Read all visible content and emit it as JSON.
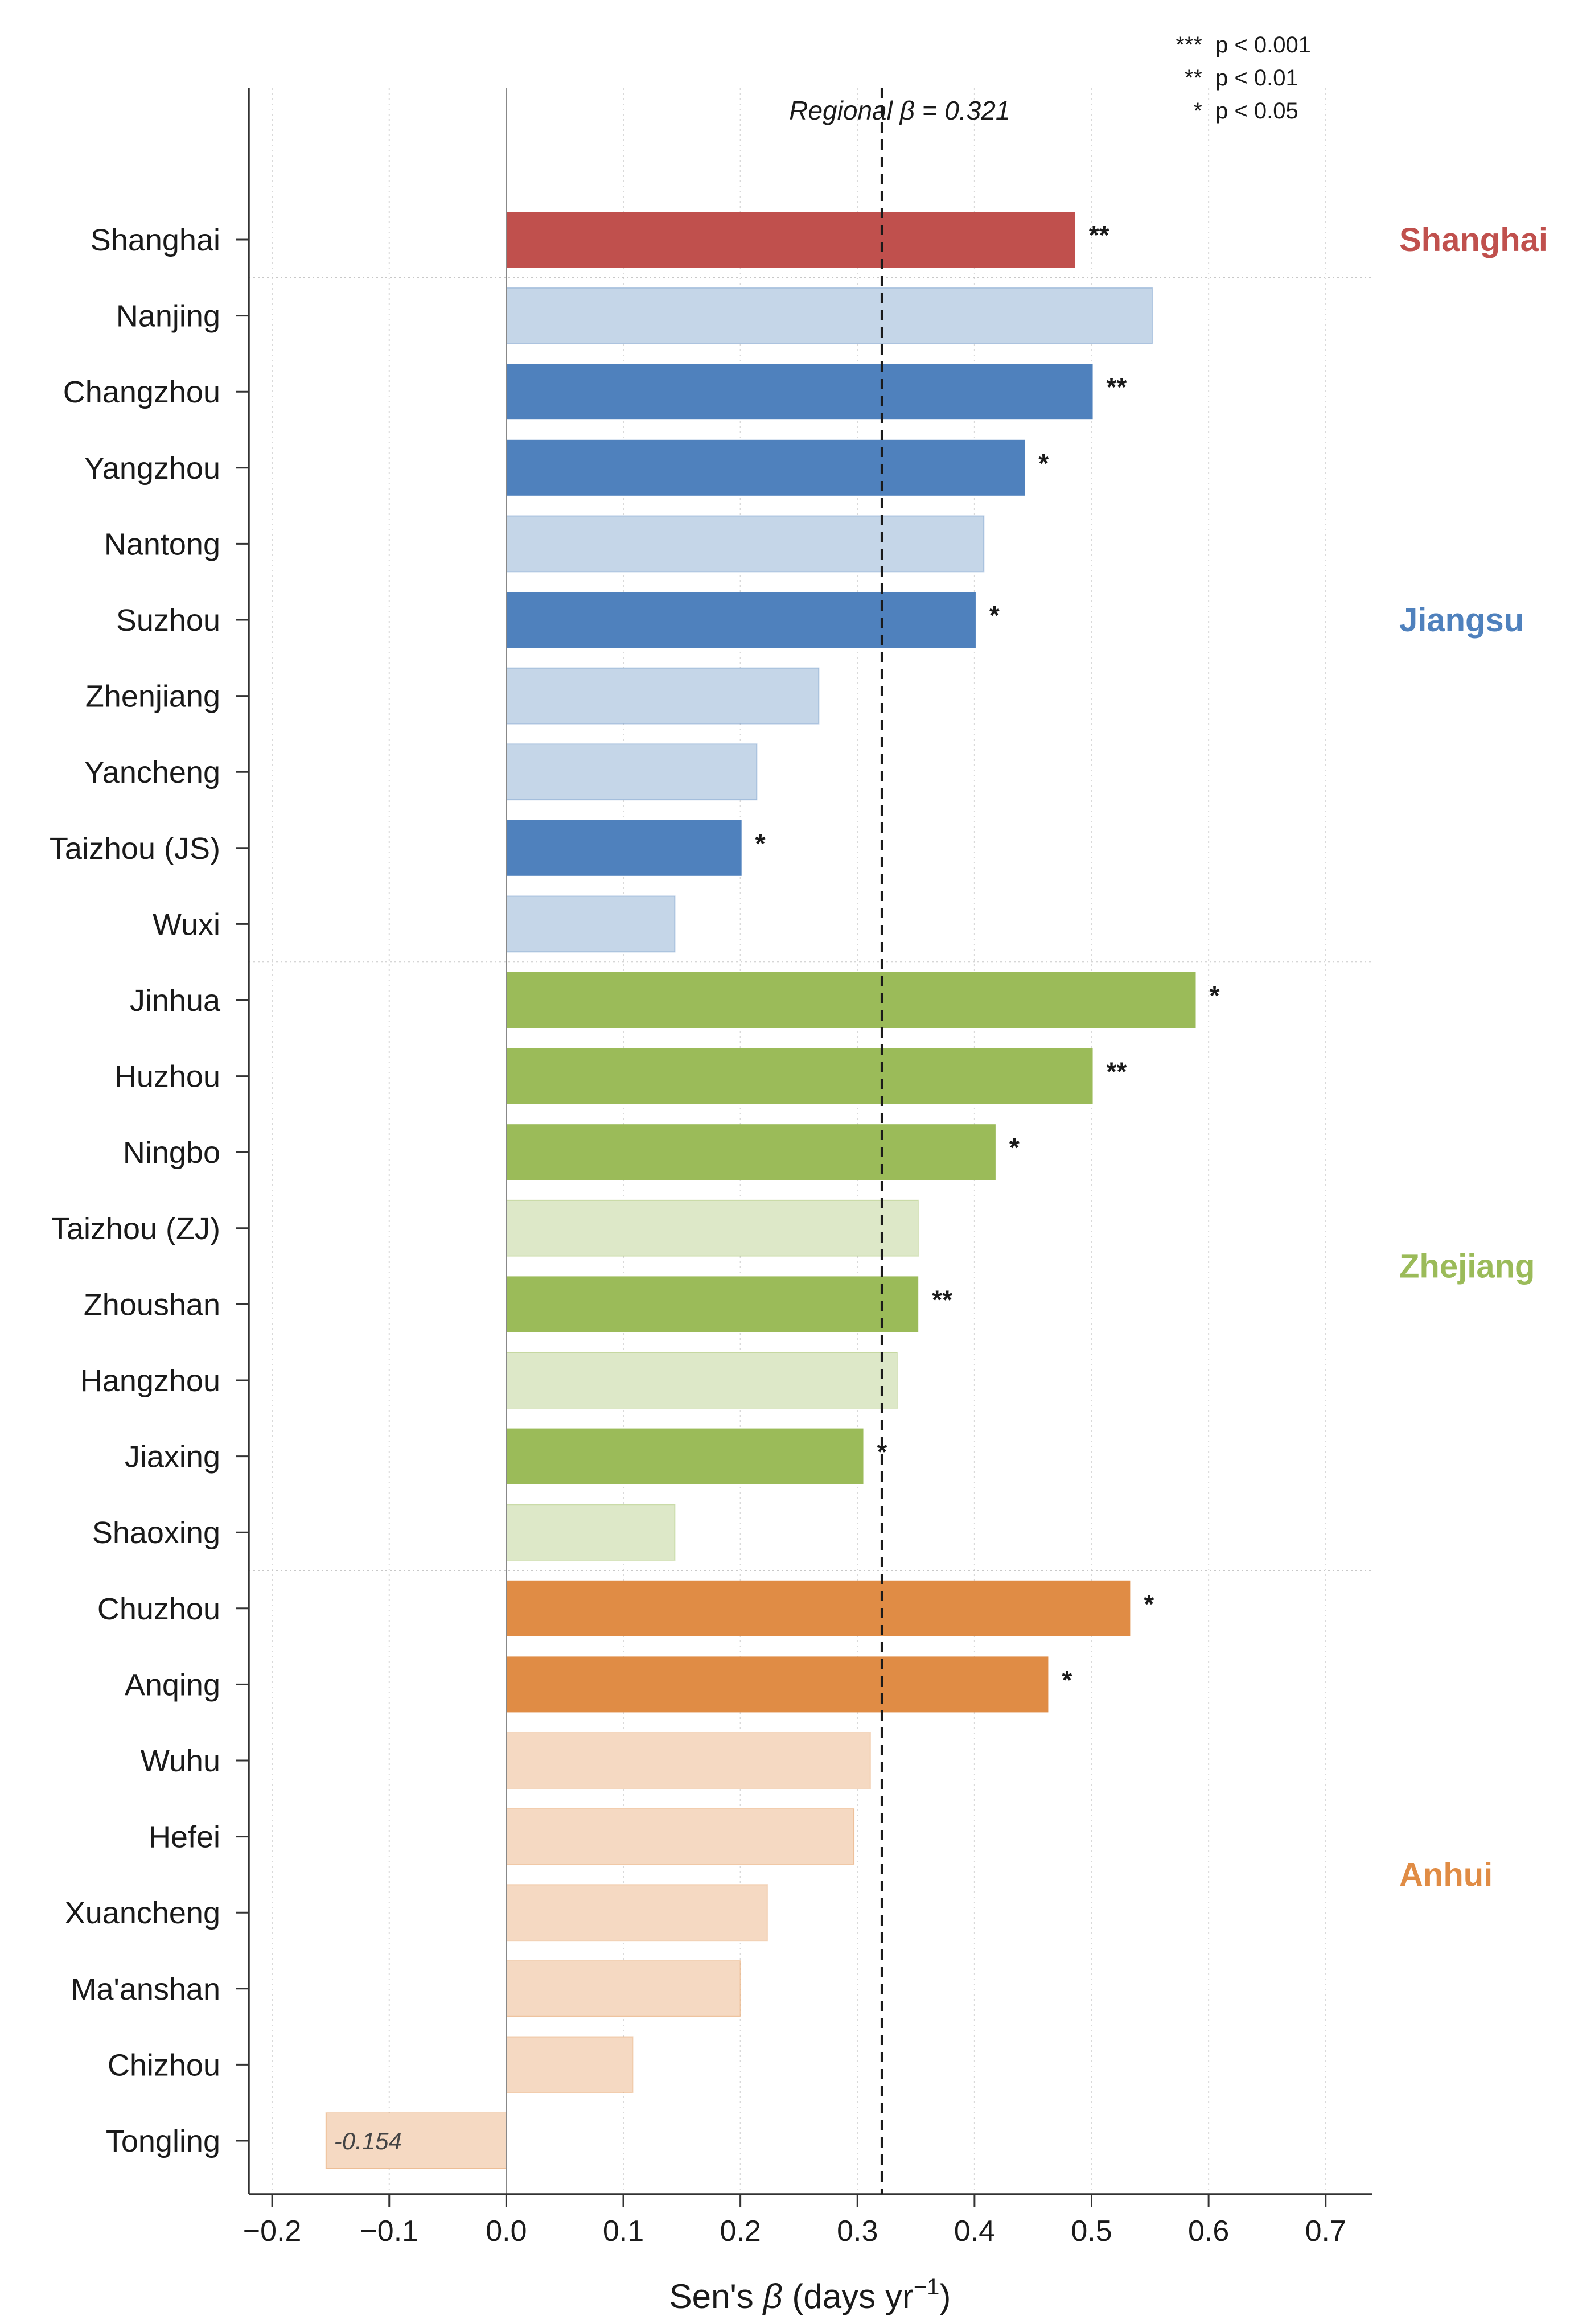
{
  "chart_data": {
    "type": "bar",
    "orientation": "horizontal",
    "xlabel": "Sen's β (days yr⁻¹)",
    "xlim": [
      -0.22,
      0.74
    ],
    "xticks": [
      -0.2,
      -0.1,
      0.0,
      0.1,
      0.2,
      0.3,
      0.4,
      0.5,
      0.6,
      0.7
    ],
    "xtick_labels": [
      "−0.2",
      "−0.1",
      "0.0",
      "0.1",
      "0.2",
      "0.3",
      "0.4",
      "0.5",
      "0.6",
      "0.7"
    ],
    "grid": "x (dotted)",
    "reference_line": {
      "value": 0.321,
      "label": "Regional β = 0.321"
    },
    "significance_legend": [
      {
        "mark": "***",
        "text": "p < 0.001"
      },
      {
        "mark": "**",
        "text": "p < 0.01"
      },
      {
        "mark": "*",
        "text": "p < 0.05"
      }
    ],
    "groups": [
      {
        "name": "Shanghai",
        "color": "#c0504d",
        "light_color": "#e6b9b8"
      },
      {
        "name": "Jiangsu",
        "color": "#4f81bd",
        "light_color": "#c5d6e8"
      },
      {
        "name": "Zhejiang",
        "color": "#9bbb59",
        "light_color": "#dde8c8"
      },
      {
        "name": "Anhui",
        "color": "#e08c45",
        "light_color": "#f5d9c2"
      }
    ],
    "bars": [
      {
        "city": "Shanghai",
        "group": "Shanghai",
        "value": 0.486,
        "sig": "**"
      },
      {
        "city": "Nanjing",
        "group": "Jiangsu",
        "value": 0.552,
        "sig": ""
      },
      {
        "city": "Changzhou",
        "group": "Jiangsu",
        "value": 0.501,
        "sig": "**"
      },
      {
        "city": "Yangzhou",
        "group": "Jiangsu",
        "value": 0.443,
        "sig": "*"
      },
      {
        "city": "Nantong",
        "group": "Jiangsu",
        "value": 0.408,
        "sig": ""
      },
      {
        "city": "Suzhou",
        "group": "Jiangsu",
        "value": 0.401,
        "sig": "*"
      },
      {
        "city": "Zhenjiang",
        "group": "Jiangsu",
        "value": 0.267,
        "sig": ""
      },
      {
        "city": "Yancheng",
        "group": "Jiangsu",
        "value": 0.214,
        "sig": ""
      },
      {
        "city": "Taizhou (JS)",
        "group": "Jiangsu",
        "value": 0.201,
        "sig": "*"
      },
      {
        "city": "Wuxi",
        "group": "Jiangsu",
        "value": 0.144,
        "sig": ""
      },
      {
        "city": "Jinhua",
        "group": "Zhejiang",
        "value": 0.589,
        "sig": "*"
      },
      {
        "city": "Huzhou",
        "group": "Zhejiang",
        "value": 0.501,
        "sig": "**"
      },
      {
        "city": "Ningbo",
        "group": "Zhejiang",
        "value": 0.418,
        "sig": "*"
      },
      {
        "city": "Taizhou (ZJ)",
        "group": "Zhejiang",
        "value": 0.352,
        "sig": ""
      },
      {
        "city": "Zhoushan",
        "group": "Zhejiang",
        "value": 0.352,
        "sig": "**"
      },
      {
        "city": "Hangzhou",
        "group": "Zhejiang",
        "value": 0.334,
        "sig": ""
      },
      {
        "city": "Jiaxing",
        "group": "Zhejiang",
        "value": 0.305,
        "sig": "*"
      },
      {
        "city": "Shaoxing",
        "group": "Zhejiang",
        "value": 0.144,
        "sig": ""
      },
      {
        "city": "Chuzhou",
        "group": "Anhui",
        "value": 0.533,
        "sig": "*"
      },
      {
        "city": "Anqing",
        "group": "Anhui",
        "value": 0.463,
        "sig": "*"
      },
      {
        "city": "Wuhu",
        "group": "Anhui",
        "value": 0.311,
        "sig": ""
      },
      {
        "city": "Hefei",
        "group": "Anhui",
        "value": 0.297,
        "sig": ""
      },
      {
        "city": "Xuancheng",
        "group": "Anhui",
        "value": 0.223,
        "sig": ""
      },
      {
        "city": "Ma'anshan",
        "group": "Anhui",
        "value": 0.2,
        "sig": ""
      },
      {
        "city": "Chizhou",
        "group": "Anhui",
        "value": 0.108,
        "sig": ""
      },
      {
        "city": "Tongling",
        "group": "Anhui",
        "value": -0.154,
        "sig": "",
        "value_label": "-0.154"
      }
    ]
  }
}
